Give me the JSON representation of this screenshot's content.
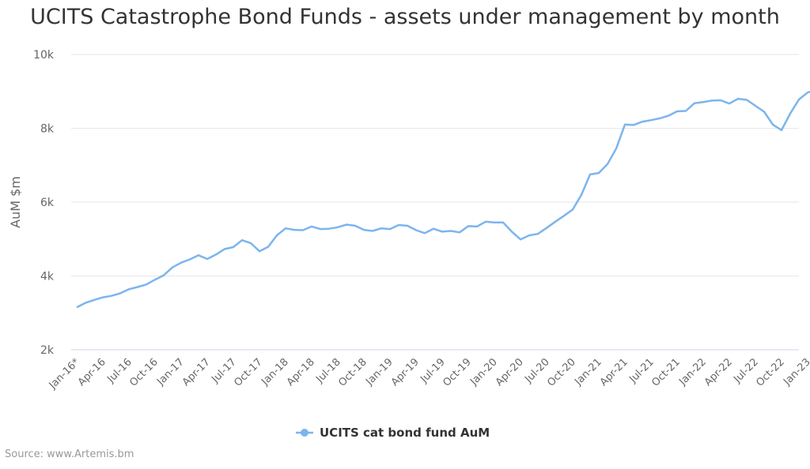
{
  "chart_data": {
    "type": "line",
    "title": "UCITS Catastrophe Bond Funds - assets under management by month",
    "xlabel": "",
    "ylabel": "AuM $m",
    "ylim": [
      2000,
      10000
    ],
    "yticks": [
      2000,
      4000,
      6000,
      8000,
      10000
    ],
    "ytick_labels": [
      "2k",
      "4k",
      "6k",
      "8k",
      "10k"
    ],
    "grid": true,
    "legend": "bottom-center",
    "xtick_labels": [
      "Jan-16*",
      "Apr-16",
      "Jul-16",
      "Oct-16",
      "Jan-17",
      "Apr-17",
      "Jul-17",
      "Oct-17",
      "Jan-18",
      "Apr-18",
      "Jul-18",
      "Oct-18",
      "Jan-19",
      "Apr-19",
      "Jul-19",
      "Oct-19",
      "Jan-20",
      "Apr-20",
      "Jul-20",
      "Oct-20",
      "Jan-21",
      "Apr-21",
      "Jul-21",
      "Oct-21",
      "Jan-22",
      "Apr-22",
      "Jul-22",
      "Oct-22",
      "Jan-23"
    ],
    "series": [
      {
        "name": "UCITS cat bond fund AuM",
        "color": "#7cb5ec",
        "values": [
          3150,
          3270,
          3350,
          3420,
          3460,
          3530,
          3640,
          3700,
          3770,
          3900,
          4020,
          4230,
          4360,
          4450,
          4560,
          4460,
          4580,
          4730,
          4780,
          4970,
          4890,
          4670,
          4790,
          5100,
          5290,
          5250,
          5240,
          5340,
          5270,
          5280,
          5320,
          5390,
          5360,
          5250,
          5220,
          5290,
          5270,
          5380,
          5360,
          5240,
          5160,
          5280,
          5200,
          5220,
          5180,
          5350,
          5340,
          5470,
          5450,
          5450,
          5200,
          4990,
          5100,
          5140,
          5300,
          5470,
          5630,
          5800,
          6200,
          6750,
          6790,
          7030,
          7450,
          8100,
          8090,
          8180,
          8220,
          8270,
          8340,
          8460,
          8470,
          8680,
          8710,
          8750,
          8760,
          8670,
          8800,
          8770,
          8610,
          8450,
          8100,
          7950,
          8400,
          8780,
          8970,
          9050
        ]
      }
    ]
  },
  "source": "Source: www.Artemis.bm"
}
